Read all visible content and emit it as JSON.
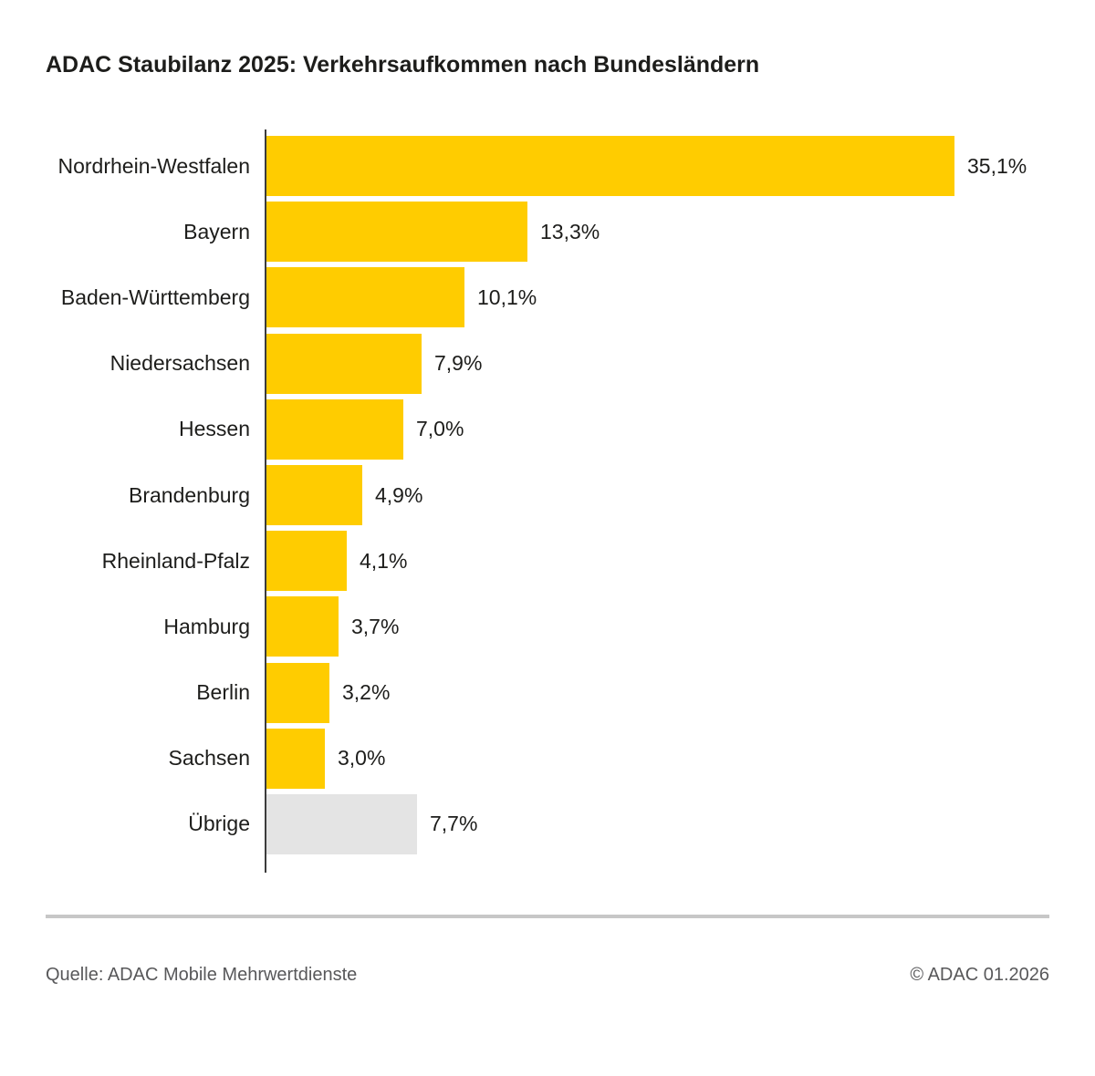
{
  "chart_data": {
    "type": "bar",
    "orientation": "horizontal",
    "title": "ADAC Staubilanz 2025: Verkehrsaufkommen nach Bundesländern",
    "categories": [
      "Nordrhein-Westfalen",
      "Bayern",
      "Baden-Württemberg",
      "Niedersachsen",
      "Hessen",
      "Brandenburg",
      "Rheinland-Pfalz",
      "Hamburg",
      "Berlin",
      "Sachsen",
      "Übrige"
    ],
    "values": [
      35.1,
      13.3,
      10.1,
      7.9,
      7.0,
      4.9,
      4.1,
      3.7,
      3.2,
      3.0,
      7.7
    ],
    "value_labels": [
      "35,1%",
      "13,3%",
      "10,1%",
      "7,9%",
      "7,0%",
      "4,9%",
      "4,1%",
      "3,7%",
      "3,2%",
      "3,0%",
      "7,7%"
    ],
    "unit": "%",
    "xlim": [
      0,
      35.1
    ],
    "grid": false,
    "legend": false,
    "bar_color_default": "#FFCC00",
    "bar_color_other": "#E4E4E4",
    "other_category_index": 10
  },
  "colors": {
    "accent_yellow": "#FFCC00",
    "neutral_gray_bar": "#E4E4E4",
    "axis_line": "#3C3C3C",
    "text_dark": "#1D1D1B",
    "text_gray": "#58585A",
    "divider_gray": "#C7C7C7"
  },
  "footer": {
    "source": "Quelle: ADAC Mobile Mehrwertdienste",
    "copyright": "© ADAC 01.2026"
  }
}
